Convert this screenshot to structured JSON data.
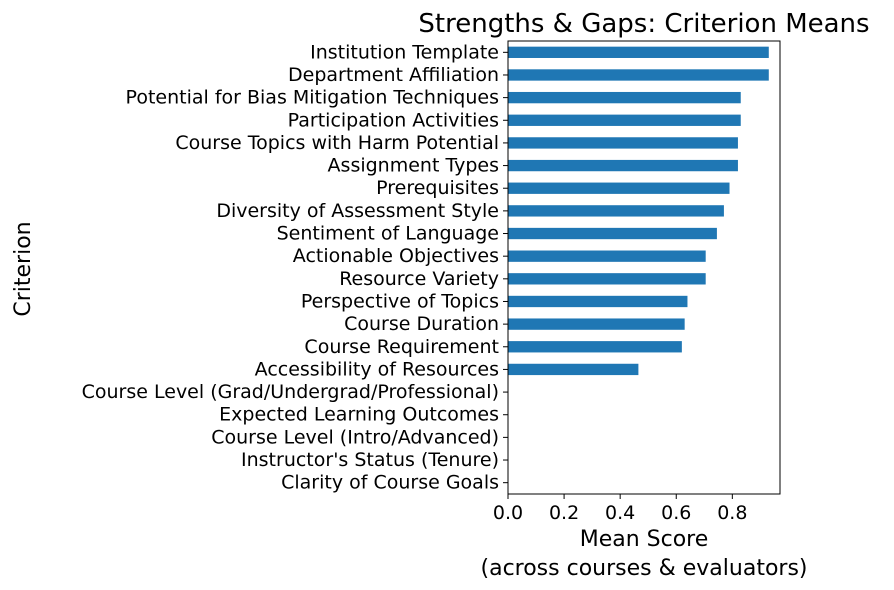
{
  "chart_data": {
    "type": "bar",
    "orientation": "horizontal",
    "title": "Strengths & Gaps: Criterion Means",
    "xlabel_lines": [
      "Mean Score",
      "(across courses & evaluators)"
    ],
    "ylabel": "Criterion",
    "xlim": [
      0,
      0.97
    ],
    "xticks": [
      0.0,
      0.2,
      0.4,
      0.6,
      0.8
    ],
    "xtick_labels": [
      "0.0",
      "0.2",
      "0.4",
      "0.6",
      "0.8"
    ],
    "bar_color": "#1f77b4",
    "categories": [
      "Institution Template",
      "Department Affiliation",
      "Potential for Bias Mitigation Techniques",
      "Participation Activities",
      "Course Topics with Harm Potential",
      "Assignment Types",
      "Prerequisites",
      "Diversity of Assessment Style",
      "Sentiment of Language",
      "Actionable Objectives",
      "Resource Variety",
      "Perspective of Topics",
      "Course Duration",
      "Course Requirement",
      "Accessibility of Resources",
      "Course Level (Grad/Undergrad/Professional)",
      "Expected Learning Outcomes",
      "Course Level (Intro/Advanced)",
      "Instructor's Status (Tenure)",
      "Clarity of Course Goals"
    ],
    "values": [
      0.93,
      0.93,
      0.83,
      0.83,
      0.82,
      0.82,
      0.79,
      0.77,
      0.745,
      0.705,
      0.705,
      0.64,
      0.63,
      0.62,
      0.465,
      0,
      0,
      0,
      0,
      0
    ],
    "grid": false
  }
}
